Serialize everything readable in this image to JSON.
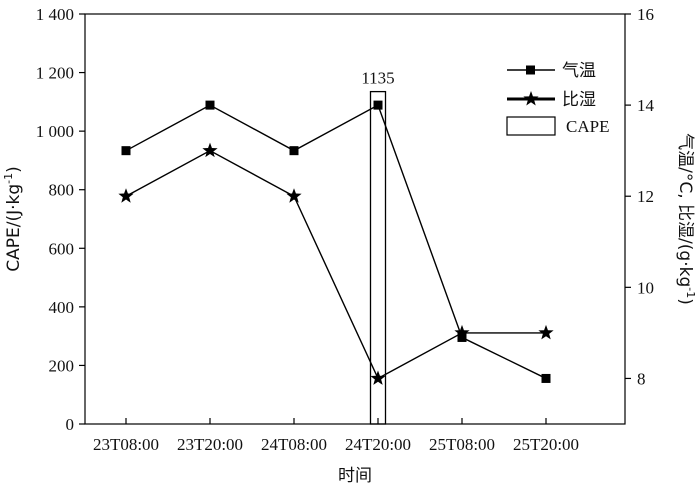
{
  "chart_data": {
    "type": "bar+line",
    "xlabel": "时间",
    "categories": [
      "23T08:00",
      "23T20:00",
      "24T08:00",
      "24T20:00",
      "25T08:00",
      "25T20:00"
    ],
    "left_axis": {
      "label": "CAPE/(J·kg-1)",
      "label_main": "CAPE/(J·kg",
      "label_sup": "-1",
      "label_close": ")",
      "range": [
        0,
        1400
      ],
      "ticks": [
        0,
        200,
        400,
        600,
        800,
        1000,
        1200,
        1400
      ],
      "tick_labels": [
        "0",
        "200",
        "400",
        "600",
        "800",
        "1 000",
        "1 200",
        "1 400"
      ]
    },
    "right_axis": {
      "label": "气温/°C, 比湿/(g·kg-1)",
      "label_main": "气温/°C, 比湿/(g·kg",
      "label_sup": "-1",
      "label_close": ")",
      "range": [
        7,
        16
      ],
      "ticks": [
        8,
        10,
        12,
        14,
        16
      ],
      "tick_labels": [
        "8",
        "10",
        "12",
        "14",
        "16"
      ]
    },
    "series": [
      {
        "name": "CAPE",
        "type": "bar",
        "axis": "left",
        "values": [
          0,
          0,
          0,
          1135,
          0,
          0
        ],
        "data_labels": [
          "",
          "",
          "",
          "1135",
          "",
          ""
        ]
      },
      {
        "name": "气温",
        "type": "line",
        "axis": "right",
        "marker": "square",
        "values": [
          13,
          14,
          13,
          14,
          8.9,
          8
        ]
      },
      {
        "name": "比湿",
        "type": "line",
        "axis": "right",
        "marker": "star",
        "values": [
          12,
          13,
          12,
          8,
          9,
          9
        ]
      }
    ],
    "legend": {
      "position": "top-right",
      "items": [
        {
          "label": "气温",
          "symbol": "line-square"
        },
        {
          "label": "比湿",
          "symbol": "line-star"
        },
        {
          "label": "CAPE",
          "symbol": "bar"
        }
      ]
    },
    "grid": false,
    "colors": {
      "line": "#000000",
      "bar_fill": "#ffffff",
      "bar_stroke": "#000000"
    }
  }
}
